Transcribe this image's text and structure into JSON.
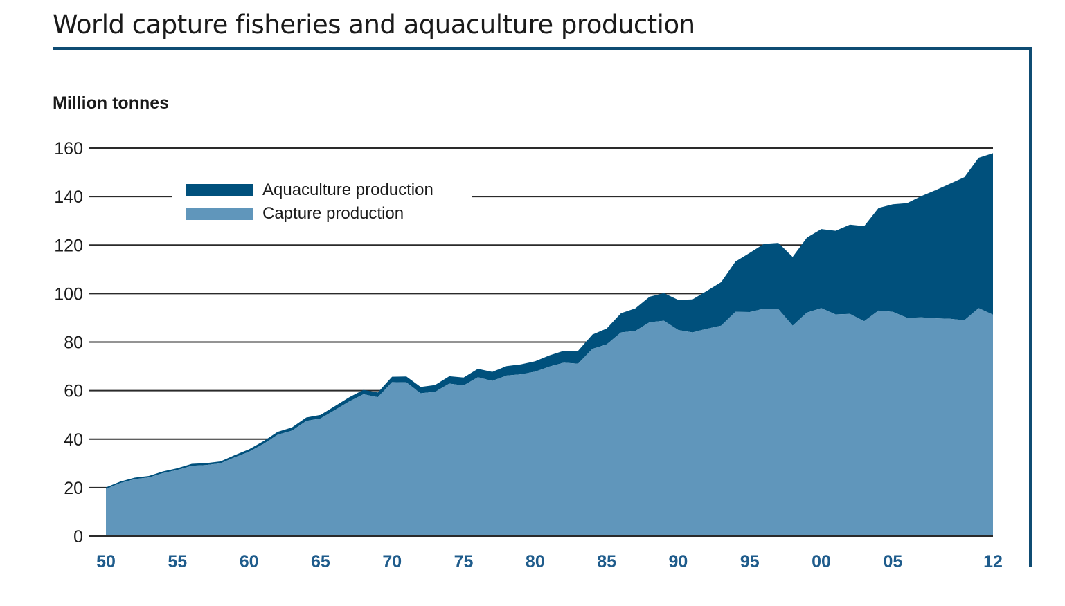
{
  "header": {
    "title": "World capture fisheries and aquaculture production"
  },
  "chart_data": {
    "type": "area",
    "stacked": true,
    "title": "World capture fisheries and aquaculture production",
    "ylabel": "Million tonnes",
    "xlabel": "",
    "ylim": [
      0,
      160
    ],
    "yticks": [
      0,
      20,
      40,
      60,
      80,
      100,
      120,
      140,
      160
    ],
    "xtick_labels": [
      {
        "year": 1950,
        "label": "50"
      },
      {
        "year": 1955,
        "label": "55"
      },
      {
        "year": 1960,
        "label": "60"
      },
      {
        "year": 1965,
        "label": "65"
      },
      {
        "year": 1970,
        "label": "70"
      },
      {
        "year": 1975,
        "label": "75"
      },
      {
        "year": 1980,
        "label": "80"
      },
      {
        "year": 1985,
        "label": "85"
      },
      {
        "year": 1990,
        "label": "90"
      },
      {
        "year": 1995,
        "label": "95"
      },
      {
        "year": 2000,
        "label": "00"
      },
      {
        "year": 2005,
        "label": "05"
      },
      {
        "year": 2012,
        "label": "12"
      }
    ],
    "grid": true,
    "legend_position": "top-left",
    "x": [
      1950,
      1951,
      1952,
      1953,
      1954,
      1955,
      1956,
      1957,
      1958,
      1959,
      1960,
      1961,
      1962,
      1963,
      1964,
      1965,
      1966,
      1967,
      1968,
      1969,
      1970,
      1971,
      1972,
      1973,
      1974,
      1975,
      1976,
      1977,
      1978,
      1979,
      1980,
      1981,
      1982,
      1983,
      1984,
      1985,
      1986,
      1987,
      1988,
      1989,
      1990,
      1991,
      1992,
      1993,
      1994,
      1995,
      1996,
      1997,
      1998,
      1999,
      2000,
      2001,
      2002,
      2003,
      2004,
      2005,
      2006,
      2007,
      2008,
      2009,
      2010,
      2011,
      2012
    ],
    "series": [
      {
        "name": "Capture production",
        "color": "#6096bb",
        "values": [
          19.5,
          21.9,
          23.5,
          24.2,
          26.0,
          27.3,
          29.0,
          29.3,
          30.0,
          32.5,
          34.8,
          38.0,
          41.8,
          43.5,
          47.5,
          48.5,
          52.0,
          55.5,
          58.5,
          57.3,
          63.5,
          63.4,
          58.9,
          59.5,
          62.9,
          62.1,
          65.5,
          64.0,
          66.2,
          66.7,
          67.8,
          69.9,
          71.5,
          71.1,
          77.2,
          79.1,
          84.0,
          84.6,
          88.2,
          88.8,
          85.0,
          84.0,
          85.5,
          86.8,
          92.5,
          92.4,
          93.8,
          93.6,
          86.8,
          92.2,
          94.0,
          91.4,
          91.6,
          88.6,
          93.0,
          92.5,
          90.0,
          90.2,
          89.8,
          89.6,
          89.0,
          94.0,
          91.3
        ]
      },
      {
        "name": "Aquaculture production",
        "color": "#00507c",
        "values": [
          0.6,
          0.6,
          0.6,
          0.6,
          0.7,
          0.7,
          0.8,
          0.8,
          0.8,
          0.9,
          1.0,
          1.1,
          1.2,
          1.3,
          1.4,
          1.5,
          1.6,
          1.7,
          1.8,
          1.9,
          2.2,
          2.4,
          2.6,
          2.8,
          3.0,
          3.3,
          3.5,
          3.7,
          3.9,
          4.1,
          4.3,
          4.6,
          4.9,
          5.3,
          5.9,
          6.5,
          7.9,
          9.3,
          10.5,
          11.4,
          12.4,
          13.6,
          15.6,
          17.9,
          20.7,
          24.4,
          26.7,
          27.3,
          28.3,
          30.9,
          32.6,
          34.5,
          36.8,
          39.2,
          42.3,
          44.3,
          47.3,
          50.0,
          52.9,
          55.7,
          59.0,
          62.0,
          66.6
        ]
      }
    ]
  }
}
